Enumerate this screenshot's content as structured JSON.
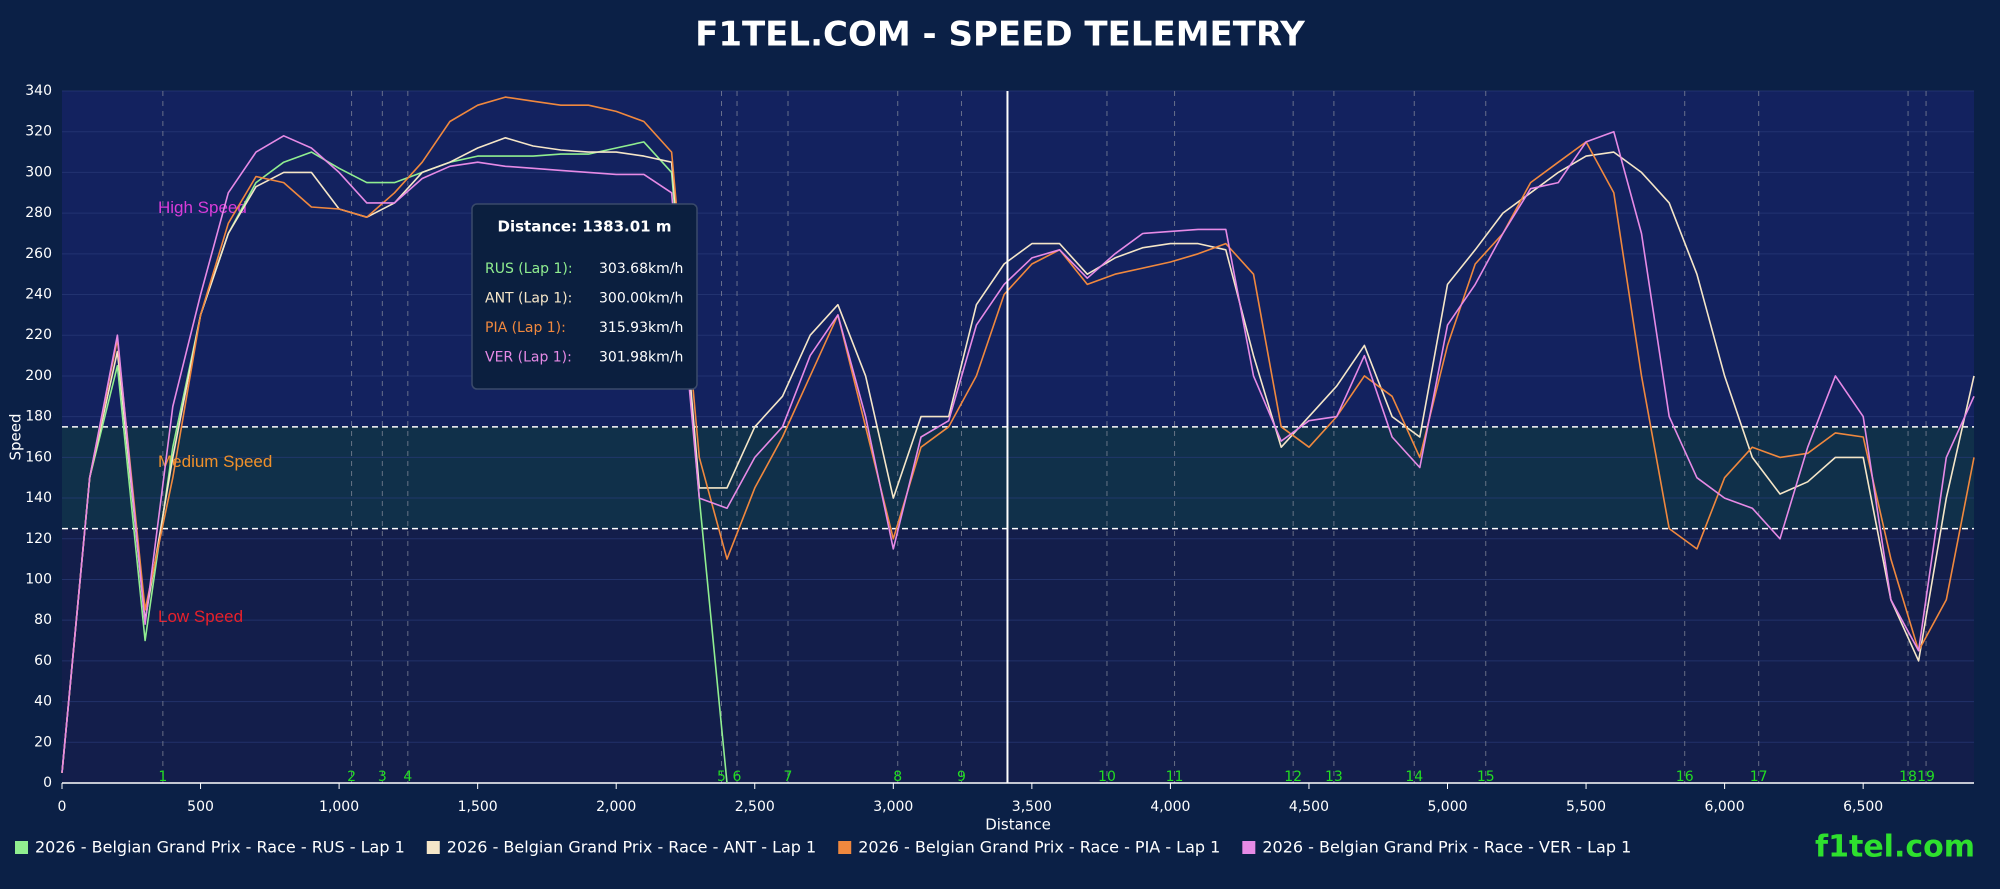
{
  "chart_data": {
    "type": "line",
    "title": "F1TEL.COM - SPEED TELEMETRY",
    "x_label": "Distance",
    "y_label": "Speed",
    "brand": "f1tel.com",
    "xlim": [
      0,
      6900
    ],
    "ylim": [
      0,
      340
    ],
    "xticks": [
      0,
      500,
      {
        "value": 1000,
        "label": "1,000"
      },
      {
        "value": 1500,
        "label": "1,500"
      },
      {
        "value": 2000,
        "label": "2,000"
      },
      {
        "value": 2500,
        "label": "2,500"
      },
      {
        "value": 3000,
        "label": "3,000"
      },
      {
        "value": 3500,
        "label": "3,500"
      },
      {
        "value": 4000,
        "label": "4,000"
      },
      {
        "value": 4500,
        "label": "4,500"
      },
      {
        "value": 5000,
        "label": "5,000"
      },
      {
        "value": 5500,
        "label": "5,500"
      },
      {
        "value": 6000,
        "label": "6,000"
      },
      {
        "value": 6500,
        "label": "6,500"
      }
    ],
    "yticks": [
      0,
      20,
      40,
      60,
      80,
      100,
      120,
      140,
      160,
      180,
      200,
      220,
      240,
      260,
      280,
      300,
      320,
      340
    ],
    "grid": true,
    "zones": [
      {
        "label": "High Speed",
        "min": 175,
        "max": 340,
        "color": "#13225f",
        "label_color": "#d93cd9"
      },
      {
        "label": "Medium Speed",
        "min": 125,
        "max": 175,
        "color": "#10304a",
        "label_color": "#f0902a"
      },
      {
        "label": "Low Speed",
        "min": 0,
        "max": 125,
        "color": "#131e4b",
        "label_color": "#e8202a"
      }
    ],
    "corners": [
      {
        "label": "1",
        "distance": 364
      },
      {
        "label": "2",
        "distance": 1045
      },
      {
        "label": "3",
        "distance": 1156
      },
      {
        "label": "4",
        "distance": 1248
      },
      {
        "label": "5",
        "distance": 2380
      },
      {
        "label": "6",
        "distance": 2436
      },
      {
        "label": "7",
        "distance": 2620
      },
      {
        "label": "8",
        "distance": 3016
      },
      {
        "label": "9",
        "distance": 3246
      },
      {
        "label": "10",
        "distance": 3771
      },
      {
        "label": "11",
        "distance": 4015
      },
      {
        "label": "12",
        "distance": 4443
      },
      {
        "label": "13",
        "distance": 4590
      },
      {
        "label": "14",
        "distance": 4880
      },
      {
        "label": "15",
        "distance": 5138
      },
      {
        "label": "16",
        "distance": 5856
      },
      {
        "label": "17",
        "distance": 6123
      },
      {
        "label": "18",
        "distance": 6662
      },
      {
        "label": "19",
        "distance": 6727
      }
    ],
    "crosshair_x": 3412,
    "tooltip": {
      "title": "Distance: 1383.01 m",
      "rows": [
        {
          "label": "RUS (Lap 1):",
          "value": "303.68km/h"
        },
        {
          "label": "ANT (Lap 1):",
          "value": "300.00km/h"
        },
        {
          "label": "PIA (Lap 1):",
          "value": "315.93km/h"
        },
        {
          "label": "VER (Lap 1):",
          "value": "301.98km/h"
        }
      ]
    },
    "x": [
      0,
      100,
      200,
      300,
      400,
      500,
      600,
      700,
      800,
      900,
      1000,
      1100,
      1200,
      1300,
      1400,
      1500,
      1600,
      1700,
      1800,
      1900,
      2000,
      2100,
      2200,
      2300,
      2400,
      2500,
      2600,
      2700,
      2800,
      2900,
      3000,
      3100,
      3200,
      3300,
      3400,
      3500,
      3600,
      3700,
      3800,
      3900,
      4000,
      4100,
      4200,
      4300,
      4400,
      4500,
      4600,
      4700,
      4800,
      4900,
      5000,
      5100,
      5200,
      5300,
      5400,
      5500,
      5600,
      5700,
      5800,
      5900,
      6000,
      6100,
      6200,
      6300,
      6400,
      6500,
      6600,
      6700,
      6800,
      6900
    ],
    "series": [
      {
        "name": "2026 - Belgian Grand Prix - Race - RUS - Lap 1",
        "color": "#90ee90",
        "values": [
          5,
          150,
          205,
          70,
          165,
          230,
          270,
          295,
          305,
          310,
          302,
          295,
          295,
          300,
          305,
          308,
          308,
          308,
          309,
          309,
          312,
          315,
          300,
          140,
          0,
          null,
          null,
          null,
          null,
          null,
          null,
          null,
          null,
          null,
          null,
          null,
          null,
          null,
          null,
          null,
          null,
          null,
          null,
          null,
          null,
          null,
          null,
          null,
          null,
          null,
          null,
          null,
          null,
          null,
          null,
          null,
          null,
          null,
          null,
          null,
          null,
          null,
          null,
          null,
          null,
          null,
          null,
          null,
          null,
          null
        ]
      },
      {
        "name": "2026 - Belgian Grand Prix - Race - ANT - Lap 1",
        "color": "#f5e6c8",
        "values": [
          5,
          150,
          212,
          80,
          160,
          230,
          270,
          293,
          300,
          300,
          282,
          278,
          285,
          300,
          305,
          312,
          317,
          313,
          311,
          310,
          310,
          308,
          305,
          145,
          145,
          175,
          190,
          220,
          235,
          200,
          140,
          180,
          180,
          235,
          255,
          265,
          265,
          250,
          258,
          263,
          265,
          265,
          262,
          210,
          165,
          180,
          195,
          215,
          180,
          170,
          245,
          262,
          280,
          290,
          300,
          308,
          310,
          300,
          285,
          250,
          200,
          160,
          142,
          148,
          160,
          160,
          90,
          60,
          140,
          200
        ]
      },
      {
        "name": "2026 - Belgian Grand Prix - Race - PIA - Lap 1",
        "color": "#f0883e",
        "values": [
          5,
          150,
          218,
          85,
          150,
          230,
          275,
          298,
          295,
          283,
          282,
          278,
          290,
          305,
          325,
          333,
          337,
          335,
          333,
          333,
          330,
          325,
          310,
          160,
          110,
          145,
          170,
          200,
          230,
          175,
          120,
          165,
          175,
          200,
          240,
          255,
          262,
          245,
          250,
          253,
          256,
          260,
          265,
          250,
          175,
          165,
          180,
          200,
          190,
          160,
          215,
          255,
          270,
          295,
          305,
          315,
          290,
          200,
          125,
          115,
          150,
          165,
          160,
          162,
          172,
          170,
          110,
          65,
          90,
          160
        ]
      },
      {
        "name": "2026 - Belgian Grand Prix - Race - VER - Lap 1",
        "color": "#e68ae6",
        "values": [
          5,
          150,
          220,
          78,
          185,
          240,
          290,
          310,
          318,
          312,
          300,
          285,
          285,
          297,
          303,
          305,
          303,
          302,
          301,
          300,
          299,
          299,
          290,
          140,
          135,
          160,
          175,
          210,
          230,
          180,
          115,
          170,
          178,
          225,
          245,
          258,
          262,
          248,
          260,
          270,
          271,
          272,
          272,
          200,
          168,
          178,
          180,
          210,
          170,
          155,
          225,
          245,
          270,
          292,
          295,
          315,
          320,
          270,
          180,
          150,
          140,
          135,
          120,
          165,
          200,
          180,
          90,
          65,
          160,
          190
        ]
      }
    ]
  }
}
